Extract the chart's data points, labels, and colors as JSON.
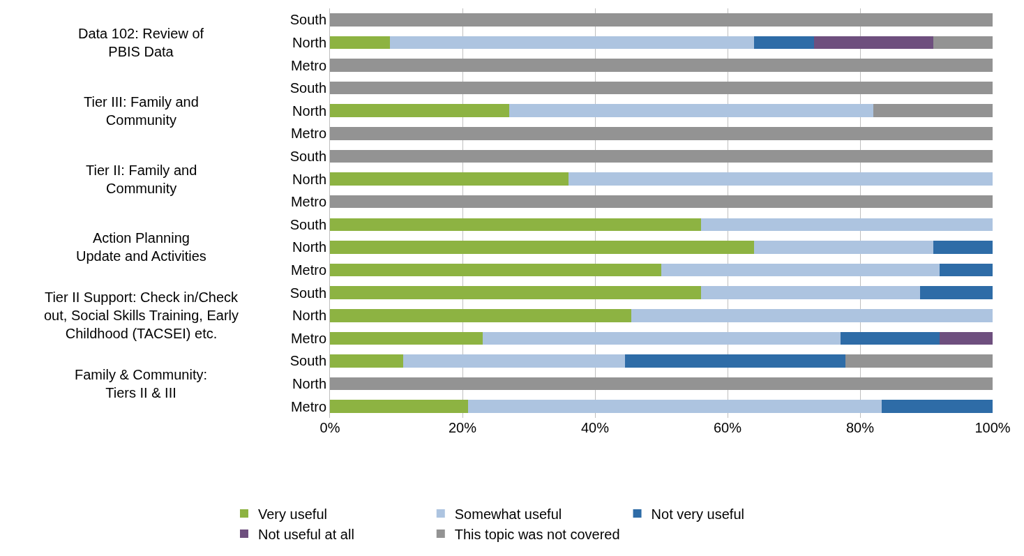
{
  "chart_data": {
    "type": "bar",
    "orientation": "horizontal",
    "stacked": true,
    "grid": "x",
    "legend": "bottom",
    "categories": [
      "South",
      "North",
      "Metro",
      "South",
      "North",
      "Metro",
      "South",
      "North",
      "Metro",
      "South",
      "North",
      "Metro",
      "South",
      "North",
      "Metro",
      "South",
      "North",
      "Metro"
    ],
    "series": [
      {
        "name": "Very useful",
        "color": "#8db342",
        "values": [
          0,
          9,
          0,
          0,
          27,
          0,
          0,
          36,
          0,
          56,
          64,
          50,
          56,
          45.5,
          23,
          11.1,
          0,
          20.8
        ]
      },
      {
        "name": "Somewhat useful",
        "color": "#adc4e0",
        "values": [
          0,
          55,
          0,
          0,
          55,
          0,
          0,
          64,
          0,
          44,
          27,
          42,
          33,
          54.5,
          54,
          33.4,
          0,
          62.5
        ]
      },
      {
        "name": "Not very useful",
        "color": "#2e6ca7",
        "values": [
          0,
          9,
          0,
          0,
          0,
          0,
          0,
          0,
          0,
          0,
          9,
          8,
          11,
          0,
          15,
          33.3,
          0,
          16.7
        ]
      },
      {
        "name": "Not useful at all",
        "color": "#6e4f7e",
        "values": [
          0,
          18,
          0,
          0,
          0,
          0,
          0,
          0,
          0,
          0,
          0,
          0,
          0,
          0,
          8,
          0,
          0,
          0
        ]
      },
      {
        "name": "This topic was not covered",
        "color": "#939393",
        "values": [
          100,
          9,
          100,
          100,
          18,
          100,
          100,
          0,
          100,
          0,
          0,
          0,
          0,
          0,
          0,
          22.2,
          100,
          0
        ]
      }
    ],
    "xlim": [
      0,
      100
    ],
    "xticks": [
      {
        "value": 0,
        "label": "0%"
      },
      {
        "value": 20,
        "label": "20%"
      },
      {
        "value": 40,
        "label": "40%"
      },
      {
        "value": 60,
        "label": "60%"
      },
      {
        "value": 80,
        "label": "80%"
      },
      {
        "value": 100,
        "label": "100%"
      }
    ],
    "annotations": [
      "Data 102: Review of\nPBIS Data",
      "Tier III: Family and\nCommunity",
      "Tier II: Family and\nCommunity",
      "Action Planning\nUpdate and Activities",
      "Tier II Support: Check in/Check\nout, Social Skills Training, Early\nChildhood (TACSEI) etc.",
      "Family & Community:\nTiers II & III"
    ]
  }
}
